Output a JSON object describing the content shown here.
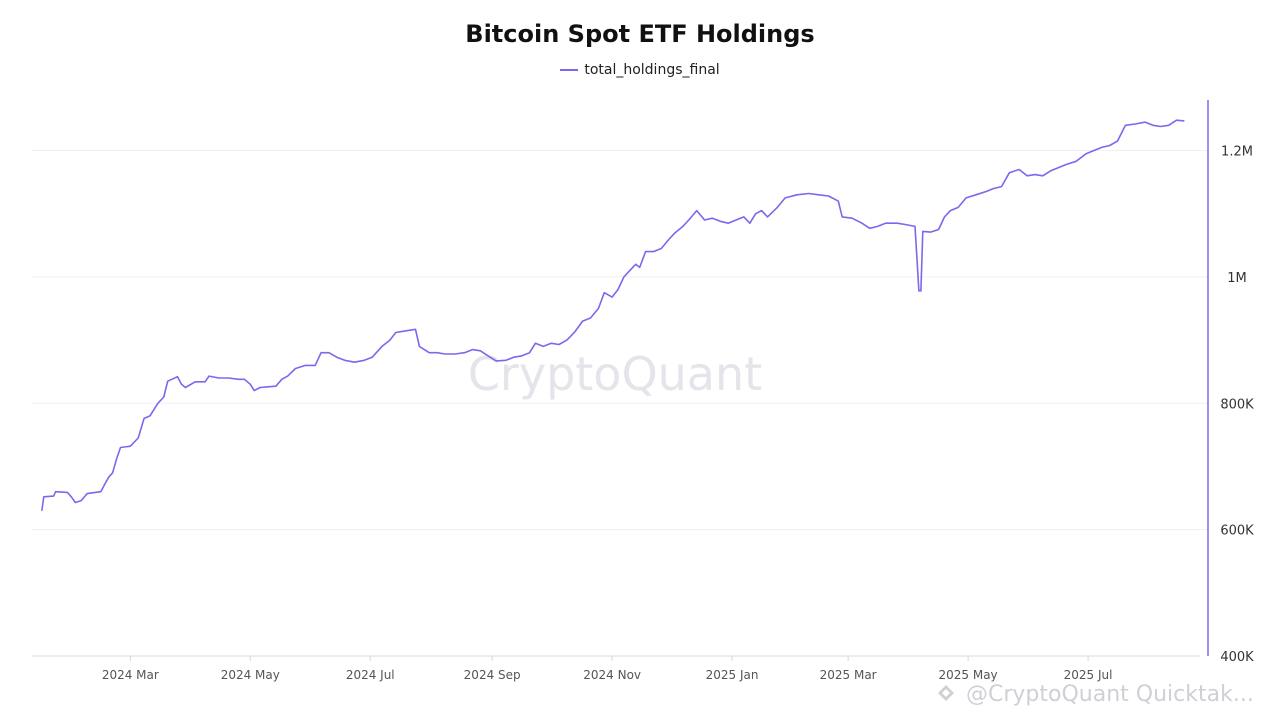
{
  "chart_data": {
    "type": "line",
    "title": "Bitcoin Spot ETF Holdings",
    "legend_position": "top-center",
    "xlabel": "",
    "ylabel": "",
    "xlim": [
      "2024-01-11",
      "2025-08-31"
    ],
    "ylim": [
      400000,
      1280000
    ],
    "y_axis_side": "right",
    "grid": true,
    "x_ticks": [
      {
        "date": "2024-03-01",
        "label": "2024 Mar"
      },
      {
        "date": "2024-05-01",
        "label": "2024 May"
      },
      {
        "date": "2024-07-01",
        "label": "2024 Jul"
      },
      {
        "date": "2024-09-01",
        "label": "2024 Sep"
      },
      {
        "date": "2024-11-01",
        "label": "2024 Nov"
      },
      {
        "date": "2025-01-01",
        "label": "2025 Jan"
      },
      {
        "date": "2025-03-01",
        "label": "2025 Mar"
      },
      {
        "date": "2025-05-01",
        "label": "2025 May"
      },
      {
        "date": "2025-07-01",
        "label": "2025 Jul"
      }
    ],
    "y_ticks": [
      {
        "value": 400000,
        "label": "400K"
      },
      {
        "value": 600000,
        "label": "600K"
      },
      {
        "value": 800000,
        "label": "800K"
      },
      {
        "value": 1000000,
        "label": "1M"
      },
      {
        "value": 1200000,
        "label": "1.2M"
      }
    ],
    "series": [
      {
        "name": "total_holdings_final",
        "color": "#7b68ee",
        "points": [
          [
            "2024-01-16",
            630000
          ],
          [
            "2024-01-17",
            652000
          ],
          [
            "2024-01-22",
            653000
          ],
          [
            "2024-01-23",
            660000
          ],
          [
            "2024-01-29",
            659000
          ],
          [
            "2024-01-31",
            652000
          ],
          [
            "2024-02-02",
            643000
          ],
          [
            "2024-02-05",
            646000
          ],
          [
            "2024-02-08",
            657000
          ],
          [
            "2024-02-15",
            660000
          ],
          [
            "2024-02-17",
            672000
          ],
          [
            "2024-02-19",
            683000
          ],
          [
            "2024-02-21",
            690000
          ],
          [
            "2024-02-23",
            712000
          ],
          [
            "2024-02-25",
            730000
          ],
          [
            "2024-03-01",
            732000
          ],
          [
            "2024-03-05",
            745000
          ],
          [
            "2024-03-08",
            776000
          ],
          [
            "2024-03-11",
            780000
          ],
          [
            "2024-03-13",
            790000
          ],
          [
            "2024-03-15",
            800000
          ],
          [
            "2024-03-18",
            810000
          ],
          [
            "2024-03-20",
            835000
          ],
          [
            "2024-03-25",
            842000
          ],
          [
            "2024-03-27",
            830000
          ],
          [
            "2024-03-29",
            825000
          ],
          [
            "2024-04-03",
            834000
          ],
          [
            "2024-04-08",
            834000
          ],
          [
            "2024-04-10",
            843000
          ],
          [
            "2024-04-15",
            840000
          ],
          [
            "2024-04-20",
            840000
          ],
          [
            "2024-04-25",
            838000
          ],
          [
            "2024-04-28",
            838000
          ],
          [
            "2024-05-01",
            830000
          ],
          [
            "2024-05-03",
            820000
          ],
          [
            "2024-05-06",
            825000
          ],
          [
            "2024-05-10",
            826000
          ],
          [
            "2024-05-14",
            827000
          ],
          [
            "2024-05-17",
            838000
          ],
          [
            "2024-05-20",
            843000
          ],
          [
            "2024-05-24",
            855000
          ],
          [
            "2024-05-29",
            860000
          ],
          [
            "2024-06-03",
            860000
          ],
          [
            "2024-06-06",
            880000
          ],
          [
            "2024-06-10",
            880000
          ],
          [
            "2024-06-14",
            873000
          ],
          [
            "2024-06-18",
            868000
          ],
          [
            "2024-06-23",
            865000
          ],
          [
            "2024-06-28",
            868000
          ],
          [
            "2024-07-02",
            873000
          ],
          [
            "2024-07-07",
            890000
          ],
          [
            "2024-07-11",
            900000
          ],
          [
            "2024-07-14",
            912000
          ],
          [
            "2024-07-18",
            914000
          ],
          [
            "2024-07-24",
            917000
          ],
          [
            "2024-07-26",
            890000
          ],
          [
            "2024-07-31",
            880000
          ],
          [
            "2024-08-04",
            880000
          ],
          [
            "2024-08-08",
            878000
          ],
          [
            "2024-08-13",
            878000
          ],
          [
            "2024-08-18",
            880000
          ],
          [
            "2024-08-22",
            885000
          ],
          [
            "2024-08-26",
            883000
          ],
          [
            "2024-08-30",
            875000
          ],
          [
            "2024-09-03",
            867000
          ],
          [
            "2024-09-08",
            868000
          ],
          [
            "2024-09-12",
            873000
          ],
          [
            "2024-09-16",
            875000
          ],
          [
            "2024-09-20",
            880000
          ],
          [
            "2024-09-23",
            895000
          ],
          [
            "2024-09-27",
            890000
          ],
          [
            "2024-10-01",
            895000
          ],
          [
            "2024-10-05",
            893000
          ],
          [
            "2024-10-09",
            900000
          ],
          [
            "2024-10-13",
            913000
          ],
          [
            "2024-10-17",
            930000
          ],
          [
            "2024-10-21",
            935000
          ],
          [
            "2024-10-25",
            950000
          ],
          [
            "2024-10-28",
            975000
          ],
          [
            "2024-11-01",
            968000
          ],
          [
            "2024-11-04",
            980000
          ],
          [
            "2024-11-07",
            1000000
          ],
          [
            "2024-11-10",
            1010000
          ],
          [
            "2024-11-13",
            1020000
          ],
          [
            "2024-11-15",
            1015000
          ],
          [
            "2024-11-18",
            1040000
          ],
          [
            "2024-11-22",
            1040000
          ],
          [
            "2024-11-26",
            1045000
          ],
          [
            "2024-11-30",
            1060000
          ],
          [
            "2024-12-03",
            1070000
          ],
          [
            "2024-12-07",
            1080000
          ],
          [
            "2024-12-10",
            1090000
          ],
          [
            "2024-12-14",
            1105000
          ],
          [
            "2024-12-18",
            1090000
          ],
          [
            "2024-12-22",
            1093000
          ],
          [
            "2024-12-26",
            1088000
          ],
          [
            "2024-12-30",
            1085000
          ],
          [
            "2025-01-03",
            1090000
          ],
          [
            "2025-01-07",
            1095000
          ],
          [
            "2025-01-10",
            1085000
          ],
          [
            "2025-01-13",
            1100000
          ],
          [
            "2025-01-16",
            1105000
          ],
          [
            "2025-01-19",
            1095000
          ],
          [
            "2025-01-24",
            1110000
          ],
          [
            "2025-01-28",
            1125000
          ],
          [
            "2025-02-03",
            1130000
          ],
          [
            "2025-02-09",
            1132000
          ],
          [
            "2025-02-14",
            1130000
          ],
          [
            "2025-02-19",
            1128000
          ],
          [
            "2025-02-24",
            1120000
          ],
          [
            "2025-02-26",
            1095000
          ],
          [
            "2025-03-03",
            1093000
          ],
          [
            "2025-03-08",
            1085000
          ],
          [
            "2025-03-12",
            1077000
          ],
          [
            "2025-03-16",
            1080000
          ],
          [
            "2025-03-20",
            1085000
          ],
          [
            "2025-03-26",
            1085000
          ],
          [
            "2025-03-30",
            1083000
          ],
          [
            "2025-04-04",
            1080000
          ],
          [
            "2025-04-06",
            978000
          ],
          [
            "2025-04-07",
            978000
          ],
          [
            "2025-04-08",
            1072000
          ],
          [
            "2025-04-12",
            1071000
          ],
          [
            "2025-04-16",
            1075000
          ],
          [
            "2025-04-19",
            1095000
          ],
          [
            "2025-04-22",
            1105000
          ],
          [
            "2025-04-26",
            1110000
          ],
          [
            "2025-04-30",
            1125000
          ],
          [
            "2025-05-05",
            1130000
          ],
          [
            "2025-05-10",
            1135000
          ],
          [
            "2025-05-14",
            1140000
          ],
          [
            "2025-05-18",
            1143000
          ],
          [
            "2025-05-22",
            1165000
          ],
          [
            "2025-05-27",
            1170000
          ],
          [
            "2025-05-31",
            1160000
          ],
          [
            "2025-06-04",
            1162000
          ],
          [
            "2025-06-08",
            1160000
          ],
          [
            "2025-06-12",
            1168000
          ],
          [
            "2025-06-16",
            1173000
          ],
          [
            "2025-06-20",
            1178000
          ],
          [
            "2025-06-25",
            1183000
          ],
          [
            "2025-06-30",
            1195000
          ],
          [
            "2025-07-04",
            1200000
          ],
          [
            "2025-07-08",
            1205000
          ],
          [
            "2025-07-12",
            1208000
          ],
          [
            "2025-07-16",
            1215000
          ],
          [
            "2025-07-20",
            1240000
          ],
          [
            "2025-07-25",
            1242000
          ],
          [
            "2025-07-30",
            1245000
          ],
          [
            "2025-08-03",
            1240000
          ],
          [
            "2025-08-07",
            1238000
          ],
          [
            "2025-08-11",
            1240000
          ],
          [
            "2025-08-15",
            1248000
          ],
          [
            "2025-08-19",
            1247000
          ]
        ]
      }
    ]
  },
  "watermark": "CryptoQuant",
  "credit": "@CryptoQuant Quicktak..."
}
